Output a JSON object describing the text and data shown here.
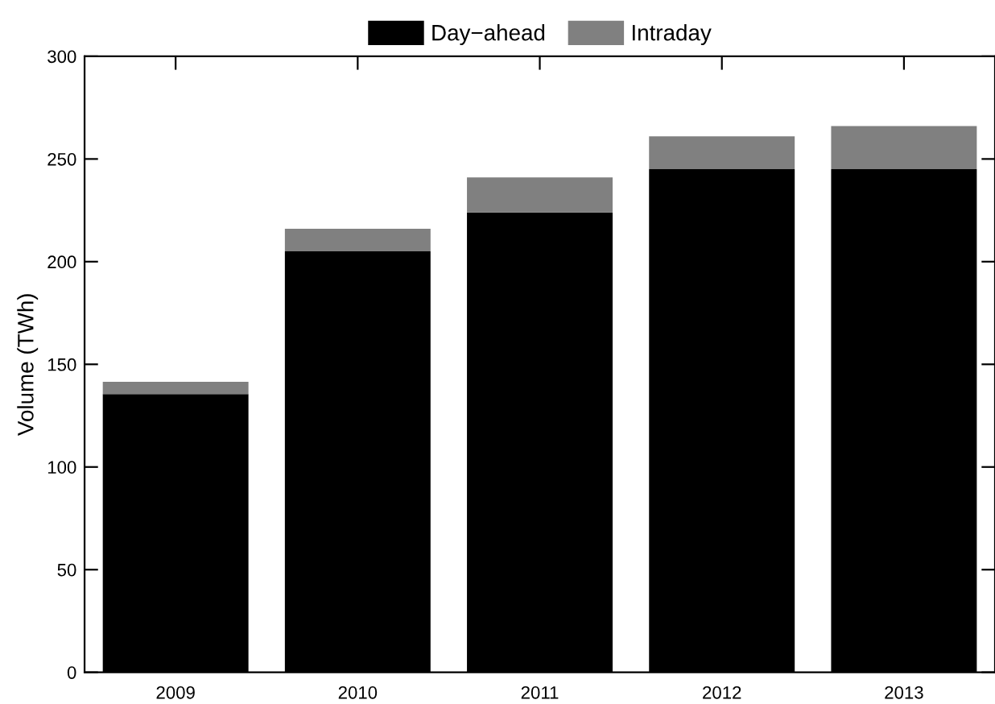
{
  "chart_data": {
    "type": "bar",
    "stacked": true,
    "ylabel": "Volume (TWh)",
    "categories": [
      "2009",
      "2010",
      "2011",
      "2012",
      "2013"
    ],
    "series": [
      {
        "name": "Day−ahead",
        "color": "#000000",
        "values": [
          135.5,
          205,
          224,
          245,
          245
        ]
      },
      {
        "name": "Intraday",
        "color": "#808080",
        "values": [
          6,
          11,
          17,
          16,
          21
        ]
      }
    ],
    "ylim": [
      0,
      300
    ],
    "yticks": [
      0,
      50,
      100,
      150,
      200,
      250,
      300
    ],
    "grid": false,
    "legend": "top"
  }
}
